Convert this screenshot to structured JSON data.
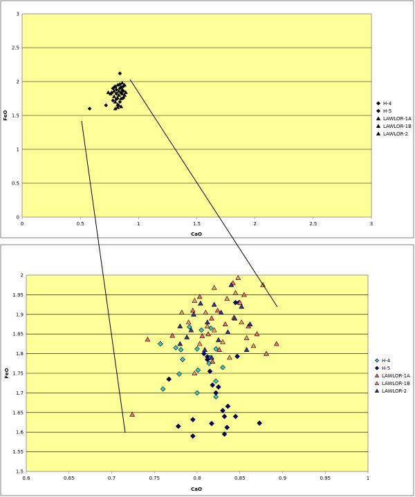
{
  "chart_data": [
    {
      "id": "overview",
      "type": "scatter",
      "title": "",
      "xlabel": "CaO",
      "ylabel": "FeO",
      "xlim": [
        0,
        3
      ],
      "ylim": [
        0,
        3
      ],
      "xticks": [
        "0",
        "0.5",
        "1",
        "1.5",
        "2",
        "2.5",
        "3"
      ],
      "yticks": [
        "0",
        "0.5",
        "1",
        "1.5",
        "2",
        "2.5",
        "3"
      ],
      "grid": "horizontal",
      "plot_background": "#ffff99",
      "legend_position": "right",
      "legend": [
        {
          "name": "H-4",
          "marker": "diamond",
          "color": "#000000"
        },
        {
          "name": "H-5",
          "marker": "diamond",
          "color": "#000000"
        },
        {
          "name": "LAWLOR-1A",
          "marker": "triangle",
          "color": "#000000"
        },
        {
          "name": "LAWLOR-1B",
          "marker": "triangle",
          "color": "#000000"
        },
        {
          "name": "LAWLOR-2",
          "marker": "triangle",
          "color": "#000000"
        }
      ],
      "points": [
        [
          0.58,
          1.6
        ],
        [
          0.72,
          1.65
        ],
        [
          0.74,
          1.84
        ],
        [
          0.76,
          1.82
        ],
        [
          0.78,
          1.9
        ],
        [
          0.79,
          1.78
        ],
        [
          0.79,
          1.86
        ],
        [
          0.8,
          1.93
        ],
        [
          0.8,
          1.7
        ],
        [
          0.81,
          1.82
        ],
        [
          0.81,
          1.88
        ],
        [
          0.82,
          1.76
        ],
        [
          0.82,
          1.95
        ],
        [
          0.82,
          1.62
        ],
        [
          0.83,
          1.8
        ],
        [
          0.83,
          1.86
        ],
        [
          0.84,
          1.9
        ],
        [
          0.84,
          1.7
        ],
        [
          0.84,
          1.96
        ],
        [
          0.85,
          1.84
        ],
        [
          0.85,
          1.75
        ],
        [
          0.85,
          1.92
        ],
        [
          0.86,
          1.88
        ],
        [
          0.86,
          1.82
        ],
        [
          0.86,
          1.98
        ],
        [
          0.87,
          1.86
        ],
        [
          0.87,
          1.93
        ],
        [
          0.88,
          1.95
        ],
        [
          0.88,
          1.8
        ],
        [
          0.89,
          1.84
        ],
        [
          0.78,
          1.72
        ],
        [
          0.8,
          1.6
        ],
        [
          0.83,
          1.65
        ],
        [
          0.84,
          2.12
        ],
        [
          0.79,
          1.92
        ],
        [
          0.81,
          1.74
        ],
        [
          0.77,
          1.84
        ],
        [
          0.82,
          1.66
        ],
        [
          0.85,
          1.63
        ],
        [
          0.87,
          1.76
        ]
      ]
    },
    {
      "id": "detail",
      "type": "scatter",
      "title": "",
      "xlabel": "CaO",
      "ylabel": "FeO",
      "xlim": [
        0.6,
        1
      ],
      "ylim": [
        1.5,
        2
      ],
      "xticks": [
        "0.6",
        "0.65",
        "0.7",
        "0.75",
        "0.8",
        "0.85",
        "0.9",
        "0.95",
        "1"
      ],
      "yticks": [
        "1.5",
        "1.55",
        "1.6",
        "1.65",
        "1.7",
        "1.75",
        "1.8",
        "1.85",
        "1.9",
        "1.95",
        "2"
      ],
      "grid": "horizontal",
      "plot_background": "#ffff99",
      "legend_position": "right",
      "legend": [
        {
          "name": "H-4",
          "marker": "diamond",
          "color": "#33cccc"
        },
        {
          "name": "H-5",
          "marker": "diamond",
          "color": "#000080"
        },
        {
          "name": "LAWLOR-1A",
          "marker": "triangle",
          "color": "#ff6666"
        },
        {
          "name": "LAWLOR-1B",
          "marker": "triangle",
          "color": "#ff9966"
        },
        {
          "name": "LAWLOR-2",
          "marker": "triangle",
          "color": "#333399"
        }
      ],
      "series": [
        {
          "name": "H-4",
          "marker": "diamond",
          "color": "#33cccc",
          "points": [
            [
              0.757,
              1.825
            ],
            [
              0.775,
              1.815
            ],
            [
              0.791,
              1.868
            ],
            [
              0.805,
              1.86
            ],
            [
              0.816,
              1.865
            ],
            [
              0.779,
              1.748
            ],
            [
              0.801,
              1.758
            ],
            [
              0.814,
              1.775
            ],
            [
              0.822,
              1.73
            ],
            [
              0.8,
              1.7
            ],
            [
              0.781,
              1.81
            ],
            [
              0.822,
              1.812
            ],
            [
              0.8,
              1.812
            ],
            [
              0.783,
              1.785
            ],
            [
              0.76,
              1.71
            ],
            [
              0.815,
              1.79
            ],
            [
              0.822,
              1.69
            ],
            [
              0.83,
              1.765
            ]
          ]
        },
        {
          "name": "H-5",
          "marker": "diamond",
          "color": "#000080",
          "points": [
            [
              0.795,
              1.59
            ],
            [
              0.778,
              1.615
            ],
            [
              0.795,
              1.632
            ],
            [
              0.817,
              1.622
            ],
            [
              0.832,
              1.595
            ],
            [
              0.835,
              1.612
            ],
            [
              0.845,
              1.64
            ],
            [
              0.83,
              1.655
            ],
            [
              0.873,
              1.623
            ],
            [
              0.822,
              1.7
            ],
            [
              0.818,
              1.72
            ],
            [
              0.836,
              1.666
            ],
            [
              0.847,
              1.793
            ],
            [
              0.808,
              1.8
            ],
            [
              0.812,
              1.792
            ],
            [
              0.815,
              1.755
            ],
            [
              0.767,
              1.735
            ],
            [
              0.845,
              1.93
            ],
            [
              0.849,
              1.93
            ],
            [
              0.832,
              1.64
            ],
            [
              0.825,
              1.715
            ],
            [
              0.812,
              1.785
            ]
          ]
        },
        {
          "name": "LAWLOR-1A",
          "marker": "triangle",
          "color": "#ff6666",
          "points": [
            [
              0.724,
              1.645
            ],
            [
              0.742,
              1.836
            ],
            [
              0.771,
              1.846
            ],
            [
              0.795,
              1.91
            ],
            [
              0.803,
              1.945
            ],
            [
              0.817,
              1.89
            ],
            [
              0.824,
              1.91
            ],
            [
              0.843,
              1.892
            ],
            [
              0.85,
              1.93
            ],
            [
              0.86,
              1.87
            ],
            [
              0.87,
              1.85
            ],
            [
              0.881,
              1.8
            ],
            [
              0.893,
              1.825
            ],
            [
              0.818,
              1.78
            ],
            [
              0.806,
              1.845
            ],
            [
              0.833,
              1.875
            ],
            [
              0.842,
              1.98
            ],
            [
              0.855,
              1.95
            ],
            [
              0.826,
              1.81
            ],
            [
              0.813,
              1.85
            ]
          ]
        },
        {
          "name": "LAWLOR-1B",
          "marker": "triangle",
          "color": "#ff9966",
          "points": [
            [
              0.782,
              1.905
            ],
            [
              0.79,
              1.88
            ],
            [
              0.797,
              1.935
            ],
            [
              0.81,
              1.905
            ],
            [
              0.82,
              1.968
            ],
            [
              0.835,
              1.94
            ],
            [
              0.848,
              1.993
            ],
            [
              0.858,
              1.84
            ],
            [
              0.866,
              1.82
            ],
            [
              0.877,
              1.975
            ],
            [
              0.803,
              1.825
            ],
            [
              0.812,
              1.87
            ],
            [
              0.83,
              1.83
            ],
            [
              0.845,
              1.955
            ],
            [
              0.852,
              1.88
            ],
            [
              0.838,
              1.79
            ],
            [
              0.797,
              1.75
            ],
            [
              0.82,
              1.86
            ]
          ]
        },
        {
          "name": "LAWLOR-2",
          "marker": "triangle",
          "color": "#333399",
          "points": [
            [
              0.78,
              1.87
            ],
            [
              0.788,
              1.842
            ],
            [
              0.796,
              1.9
            ],
            [
              0.804,
              1.928
            ],
            [
              0.812,
              1.88
            ],
            [
              0.82,
              1.925
            ],
            [
              0.828,
              1.905
            ],
            [
              0.836,
              1.855
            ],
            [
              0.844,
              1.89
            ],
            [
              0.852,
              1.92
            ],
            [
              0.862,
              1.875
            ],
            [
              0.809,
              1.81
            ],
            [
              0.817,
              1.79
            ],
            [
              0.825,
              1.835
            ],
            [
              0.84,
              1.975
            ],
            [
              0.858,
              1.81
            ],
            [
              0.78,
              1.825
            ],
            [
              0.793,
              1.86
            ]
          ]
        }
      ]
    }
  ]
}
